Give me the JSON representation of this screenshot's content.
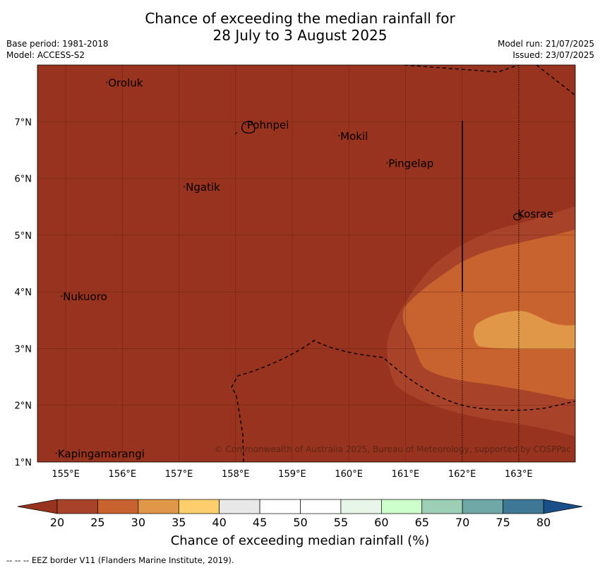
{
  "header": {
    "title_line1": "Chance of exceeding the median rainfall for",
    "title_line2": "28 July to 3 August 2025",
    "base_period": "Base period: 1981-2018",
    "model": "Model: ACCESS-S2",
    "model_run": "Model run: 21/07/2025",
    "issued": "Issued: 23/07/2025"
  },
  "map": {
    "lon_range": [
      154.5,
      164.0
    ],
    "lat_range": [
      1.0,
      8.0
    ],
    "lon_ticks": [
      {
        "value": 155,
        "label": "155°E"
      },
      {
        "value": 156,
        "label": "156°E"
      },
      {
        "value": 157,
        "label": "157°E"
      },
      {
        "value": 158,
        "label": "158°E"
      },
      {
        "value": 159,
        "label": "159°E"
      },
      {
        "value": 160,
        "label": "160°E"
      },
      {
        "value": 161,
        "label": "161°E"
      },
      {
        "value": 162,
        "label": "162°E"
      },
      {
        "value": 163,
        "label": "163°E"
      }
    ],
    "lat_ticks": [
      {
        "value": 1,
        "label": "1°N"
      },
      {
        "value": 2,
        "label": "2°N"
      },
      {
        "value": 3,
        "label": "3°N"
      },
      {
        "value": 4,
        "label": "4°N"
      },
      {
        "value": 5,
        "label": "5°N"
      },
      {
        "value": 6,
        "label": "6°N"
      },
      {
        "value": 7,
        "label": "7°N"
      }
    ],
    "background_fill": "#98331f",
    "places": [
      {
        "name": "Oroluk",
        "lon": 155.75,
        "lat": 7.62
      },
      {
        "name": "Pohnpei",
        "lon": 158.2,
        "lat": 6.88
      },
      {
        "name": "Mokil",
        "lon": 159.85,
        "lat": 6.68
      },
      {
        "name": "Pingelap",
        "lon": 160.7,
        "lat": 6.2
      },
      {
        "name": "Ngatik",
        "lon": 157.12,
        "lat": 5.78
      },
      {
        "name": "Kosrae",
        "lon": 162.98,
        "lat": 5.31
      },
      {
        "name": "Nukuoro",
        "lon": 154.95,
        "lat": 3.85
      },
      {
        "name": "Kapingamarangi",
        "lon": 154.86,
        "lat": 1.08
      }
    ],
    "copyright": "© Commonwealth of Australia 2025, Bureau of Meteorology, supported by COSPPac"
  },
  "colorbar": {
    "ticks": [
      "20",
      "25",
      "30",
      "35",
      "40",
      "45",
      "50",
      "55",
      "60",
      "65",
      "70",
      "75",
      "80"
    ],
    "under_color": "#98331f",
    "over_color": "#1a4f8a",
    "colors": [
      "#a8432a",
      "#c8622e",
      "#e09848",
      "#fccf6c",
      "#e8e8e8",
      "#ffffff",
      "#ffffff",
      "#e8f6e8",
      "#ccffcc",
      "#9ccfb6",
      "#70a8a8",
      "#3f7896"
    ],
    "label": "Chance of exceeding median rainfall (%)"
  },
  "footnote": "--  --  -- EEZ border V11 (Flanders Marine Institute, 2019)."
}
